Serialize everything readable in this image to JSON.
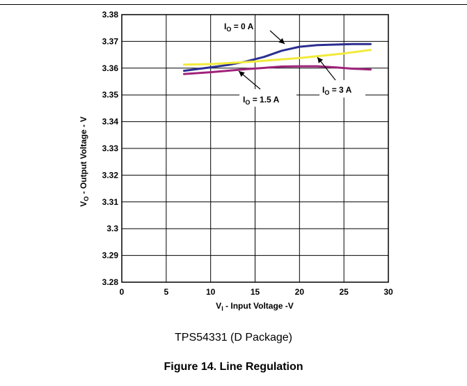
{
  "chart_data": {
    "type": "line",
    "xlabel": {
      "main": "V",
      "sub": "I",
      "rest": " - Input Voltage -V"
    },
    "ylabel": {
      "main": "V",
      "sub": "O",
      "rest": " - Output Voltage - V"
    },
    "xlim": [
      0,
      30
    ],
    "ylim": [
      3.28,
      3.38
    ],
    "x_ticks": [
      "0",
      "5",
      "10",
      "15",
      "20",
      "25",
      "30"
    ],
    "y_ticks": [
      "3.28",
      "3.29",
      "3.3",
      "3.31",
      "3.32",
      "3.33",
      "3.34",
      "3.35",
      "3.36",
      "3.37",
      "3.38"
    ],
    "grid": true,
    "series": [
      {
        "name": "I_O = 0 A",
        "color": "#2b2f8f",
        "x": [
          7,
          10,
          12,
          14,
          16,
          18,
          20,
          22,
          24,
          26,
          28
        ],
        "y": [
          3.359,
          3.3603,
          3.3612,
          3.3625,
          3.3642,
          3.3665,
          3.368,
          3.3686,
          3.3688,
          3.369,
          3.369
        ]
      },
      {
        "name": "I_O = 3 A",
        "color": "#f2ea3a",
        "x": [
          7,
          10,
          15,
          20,
          25,
          28
        ],
        "y": [
          3.3613,
          3.3615,
          3.3625,
          3.3638,
          3.3655,
          3.3668
        ]
      },
      {
        "name": "I_O = 1.5 A",
        "color": "#a0227a",
        "x": [
          7,
          10,
          14,
          18,
          20,
          22,
          24,
          26,
          28
        ],
        "y": [
          3.3578,
          3.3585,
          3.3596,
          3.3606,
          3.3607,
          3.3607,
          3.3603,
          3.3598,
          3.3595
        ]
      }
    ],
    "annotations": [
      {
        "main": "I",
        "sub": "O",
        "rest": " = 0 A"
      },
      {
        "main": "I",
        "sub": "O",
        "rest": " = 1.5 A"
      },
      {
        "main": "I",
        "sub": "O",
        "rest": " = 3 A"
      }
    ]
  },
  "captions": {
    "subtitle": "TPS54331 (D Package)",
    "figure_title": "Figure 14. Line Regulation"
  }
}
